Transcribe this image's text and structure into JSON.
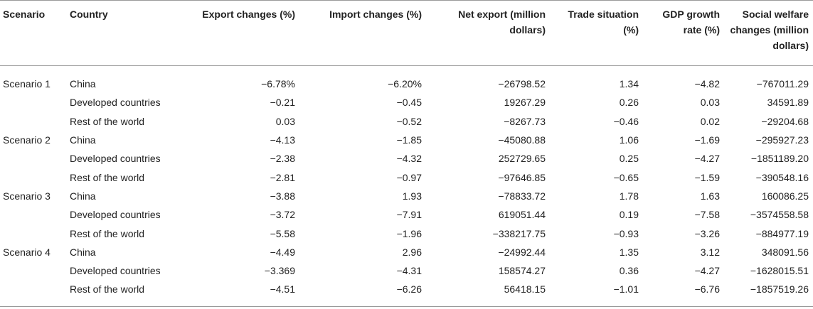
{
  "headers": [
    "Scenario",
    "Country",
    "Export changes (%)",
    "Import changes (%)",
    "Net export (million dollars)",
    "Trade situation (%)",
    "GDP growth rate (%)",
    "Social welfare changes (million dollars)"
  ],
  "rows": [
    [
      "Scenario 1",
      "China",
      "−6.78%",
      "−6.20%",
      "−26798.52",
      "1.34",
      "−4.82",
      "−767011.29"
    ],
    [
      "",
      "Developed countries",
      "−0.21",
      "−0.45",
      "19267.29",
      "0.26",
      "0.03",
      "34591.89"
    ],
    [
      "",
      "Rest of the world",
      "0.03",
      "−0.52",
      "−8267.73",
      "−0.46",
      "0.02",
      "−29204.68"
    ],
    [
      "Scenario 2",
      "China",
      "−4.13",
      "−1.85",
      "−45080.88",
      "1.06",
      "−1.69",
      "−295927.23"
    ],
    [
      "",
      "Developed countries",
      "−2.38",
      "−4.32",
      "252729.65",
      "0.25",
      "−4.27",
      "−1851189.20"
    ],
    [
      "",
      "Rest of the world",
      "−2.81",
      "−0.97",
      "−97646.85",
      "−0.65",
      "−1.59",
      "−390548.16"
    ],
    [
      "Scenario 3",
      "China",
      "−3.88",
      "1.93",
      "−78833.72",
      "1.78",
      "1.63",
      "160086.25"
    ],
    [
      "",
      "Developed countries",
      "−3.72",
      "−7.91",
      "619051.44",
      "0.19",
      "−7.58",
      "−3574558.58"
    ],
    [
      "",
      "Rest of the world",
      "−5.58",
      "−1.96",
      "−338217.75",
      "−0.93",
      "−3.26",
      "−884977.19"
    ],
    [
      "Scenario 4",
      "China",
      "−4.49",
      "2.96",
      "−24992.44",
      "1.35",
      "3.12",
      "348091.56"
    ],
    [
      "",
      "Developed countries",
      "−3.369",
      "−4.31",
      "158574.27",
      "0.36",
      "−4.27",
      "−1628015.51"
    ],
    [
      "",
      "Rest of the world",
      "−4.51",
      "−6.26",
      "56418.15",
      "−1.01",
      "−6.76",
      "−1857519.26"
    ]
  ]
}
